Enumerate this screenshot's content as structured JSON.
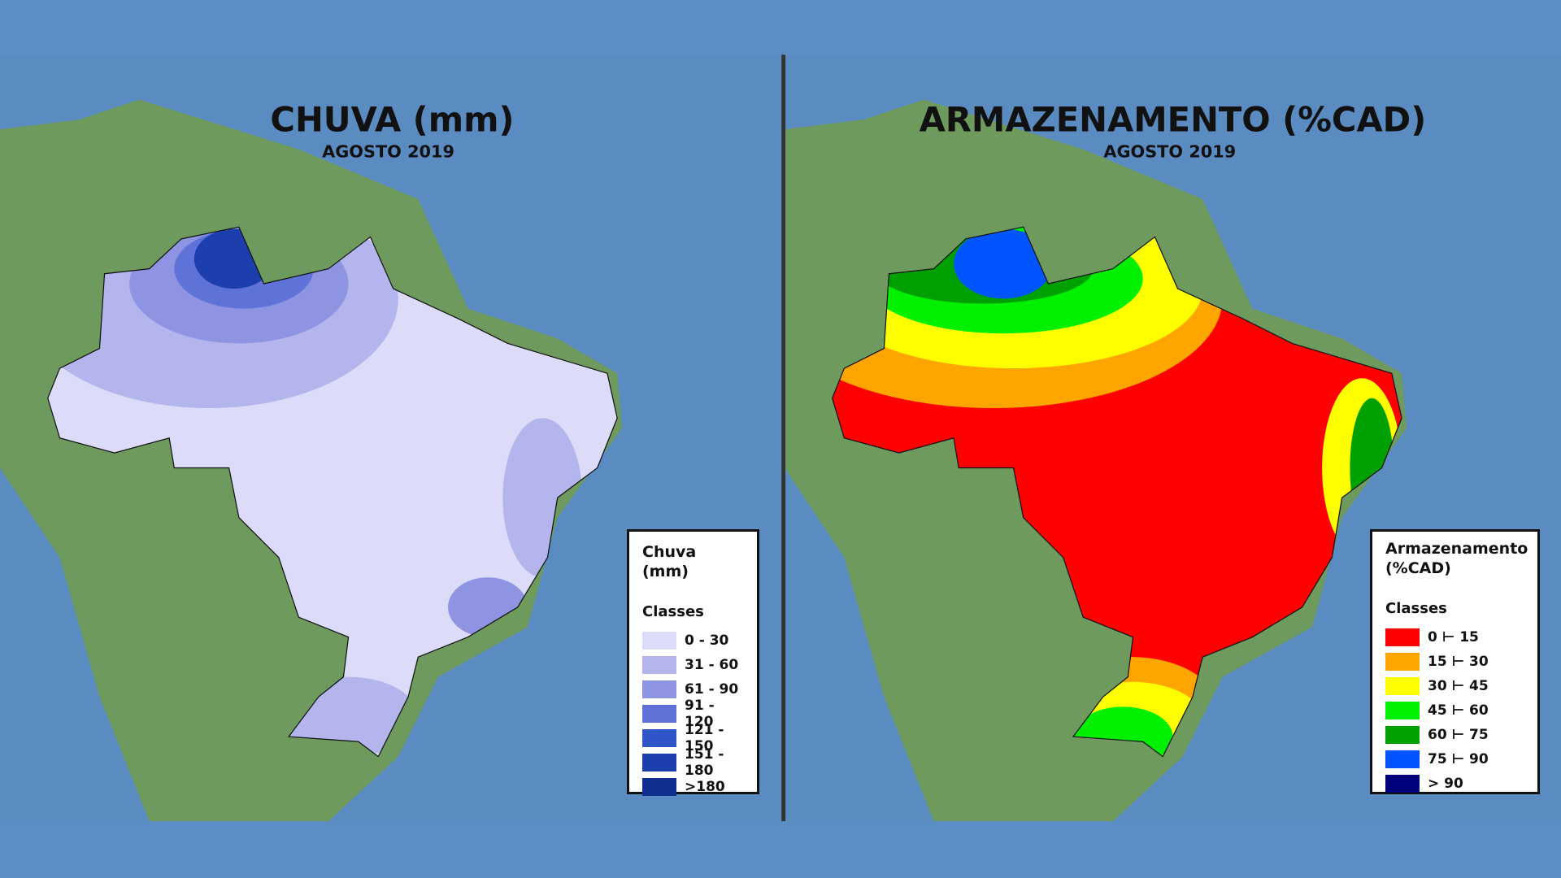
{
  "maps": [
    {
      "title": "CHUVA (mm)",
      "subtitle": "AGOSTO 2019",
      "legend": {
        "title": "Chuva (mm)",
        "subtitle": "Classes",
        "classes": [
          {
            "label": "0 - 30",
            "color": "#dcdcfa"
          },
          {
            "label": "31 - 60",
            "color": "#b3b5ec"
          },
          {
            "label": "61 - 90",
            "color": "#8e94e2"
          },
          {
            "label": "91 - 120",
            "color": "#5f72d8"
          },
          {
            "label": "121 - 150",
            "color": "#2f55c8"
          },
          {
            "label": "151 - 180",
            "color": "#1d3fae"
          },
          {
            "label": ">180",
            "color": "#0f2f8e"
          }
        ]
      }
    },
    {
      "title": "ARMAZENAMENTO (%CAD)",
      "subtitle": "AGOSTO 2019",
      "legend": {
        "title": "Armazenamento (%CAD)",
        "subtitle": "Classes",
        "classes": [
          {
            "label": "0 ⊢ 15",
            "color": "#ff0000"
          },
          {
            "label": "15 ⊢ 30",
            "color": "#ffa500"
          },
          {
            "label": "30 ⊢ 45",
            "color": "#ffff00"
          },
          {
            "label": "45 ⊢ 60",
            "color": "#00f000"
          },
          {
            "label": "60 ⊢ 75",
            "color": "#00a000"
          },
          {
            "label": "75 ⊢ 90",
            "color": "#0055ff"
          },
          {
            "label": "> 90",
            "color": "#00007a"
          }
        ]
      }
    }
  ]
}
